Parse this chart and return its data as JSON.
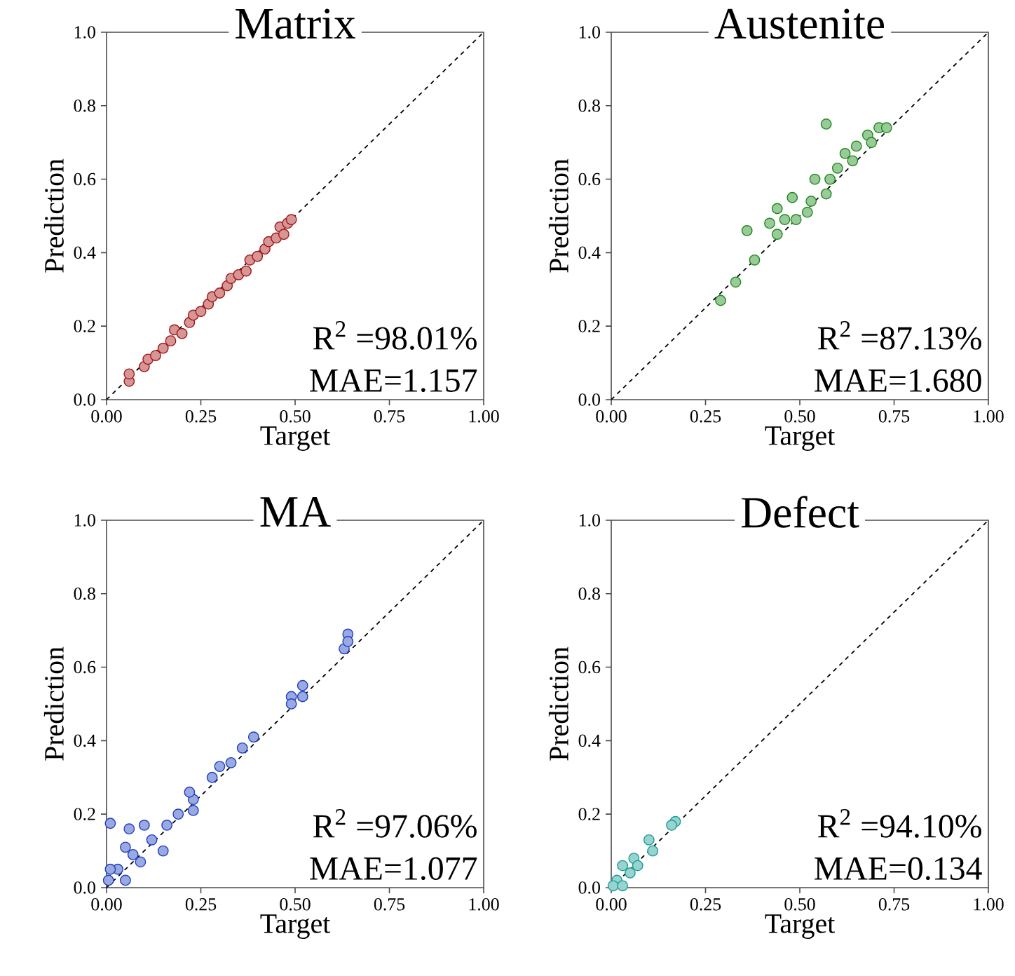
{
  "chart_data": [
    {
      "type": "scatter",
      "title": "Matrix",
      "xlabel": "Target",
      "ylabel": "Prediction",
      "xlim": [
        0,
        1
      ],
      "ylim": [
        0,
        1
      ],
      "xticks": [
        {
          "value": 0,
          "label": "0.00"
        },
        {
          "value": 0.25,
          "label": "0.25"
        },
        {
          "value": 0.5,
          "label": "0.50"
        },
        {
          "value": 0.75,
          "label": "0.75"
        },
        {
          "value": 1,
          "label": "1.00"
        }
      ],
      "yticks": [
        {
          "value": 0,
          "label": "0.0"
        },
        {
          "value": 0.2,
          "label": "0.2"
        },
        {
          "value": 0.4,
          "label": "0.4"
        },
        {
          "value": 0.6,
          "label": "0.6"
        },
        {
          "value": 0.8,
          "label": "0.8"
        },
        {
          "value": 1,
          "label": "1.0"
        }
      ],
      "annotations": [
        "R$^{2}$ =98.01%",
        "MAE=1.157"
      ],
      "series": [
        {
          "marker": "circle",
          "color": "#a31515",
          "x": [
            0.06,
            0.06,
            0.1,
            0.11,
            0.13,
            0.15,
            0.17,
            0.18,
            0.2,
            0.22,
            0.23,
            0.25,
            0.27,
            0.28,
            0.3,
            0.32,
            0.33,
            0.35,
            0.37,
            0.38,
            0.4,
            0.42,
            0.43,
            0.45,
            0.46,
            0.47,
            0.48,
            0.49
          ],
          "values": [
            0.05,
            0.07,
            0.09,
            0.11,
            0.12,
            0.14,
            0.16,
            0.19,
            0.18,
            0.21,
            0.23,
            0.24,
            0.26,
            0.28,
            0.29,
            0.31,
            0.33,
            0.34,
            0.35,
            0.38,
            0.39,
            0.41,
            0.43,
            0.44,
            0.47,
            0.45,
            0.48,
            0.49
          ]
        },
        {
          "type": "line",
          "line_style": "dashed",
          "color": "#000000",
          "x": [
            0,
            1
          ],
          "values": [
            0,
            1
          ]
        }
      ]
    },
    {
      "type": "scatter",
      "title": "Austenite",
      "xlabel": "Target",
      "ylabel": "Prediction",
      "xlim": [
        0,
        1
      ],
      "ylim": [
        0,
        1
      ],
      "xticks": [
        {
          "value": 0,
          "label": "0.00"
        },
        {
          "value": 0.25,
          "label": "0.25"
        },
        {
          "value": 0.5,
          "label": "0.50"
        },
        {
          "value": 0.75,
          "label": "0.75"
        },
        {
          "value": 1,
          "label": "1.00"
        }
      ],
      "yticks": [
        {
          "value": 0,
          "label": "0.0"
        },
        {
          "value": 0.2,
          "label": "0.2"
        },
        {
          "value": 0.4,
          "label": "0.4"
        },
        {
          "value": 0.6,
          "label": "0.6"
        },
        {
          "value": 0.8,
          "label": "0.8"
        },
        {
          "value": 1,
          "label": "1.0"
        }
      ],
      "annotations": [
        "R$^{2}$ =87.13%",
        "MAE=1.680"
      ],
      "series": [
        {
          "marker": "circle",
          "color": "#1e8a1e",
          "x": [
            0.29,
            0.33,
            0.36,
            0.38,
            0.42,
            0.44,
            0.44,
            0.46,
            0.48,
            0.49,
            0.52,
            0.53,
            0.54,
            0.57,
            0.57,
            0.58,
            0.6,
            0.62,
            0.64,
            0.65,
            0.68,
            0.69,
            0.71,
            0.73
          ],
          "values": [
            0.27,
            0.32,
            0.46,
            0.38,
            0.48,
            0.52,
            0.45,
            0.49,
            0.55,
            0.49,
            0.51,
            0.54,
            0.6,
            0.56,
            0.75,
            0.6,
            0.63,
            0.67,
            0.65,
            0.69,
            0.72,
            0.7,
            0.74,
            0.74
          ]
        },
        {
          "type": "line",
          "line_style": "dashed",
          "color": "#000000",
          "x": [
            0,
            1
          ],
          "values": [
            0,
            1
          ]
        }
      ]
    },
    {
      "type": "scatter",
      "title": "MA",
      "xlabel": "Target",
      "ylabel": "Prediction",
      "xlim": [
        0,
        1
      ],
      "ylim": [
        0,
        1
      ],
      "xticks": [
        {
          "value": 0,
          "label": "0.00"
        },
        {
          "value": 0.25,
          "label": "0.25"
        },
        {
          "value": 0.5,
          "label": "0.50"
        },
        {
          "value": 0.75,
          "label": "0.75"
        },
        {
          "value": 1,
          "label": "1.00"
        }
      ],
      "yticks": [
        {
          "value": 0,
          "label": "0.0"
        },
        {
          "value": 0.2,
          "label": "0.2"
        },
        {
          "value": 0.4,
          "label": "0.4"
        },
        {
          "value": 0.6,
          "label": "0.6"
        },
        {
          "value": 0.8,
          "label": "0.8"
        },
        {
          "value": 1,
          "label": "1.0"
        }
      ],
      "annotations": [
        "R$^{2}$ =97.06%",
        "MAE=1.077"
      ],
      "series": [
        {
          "marker": "circle",
          "color": "#2040c0",
          "x": [
            0.01,
            0.06,
            0.1,
            0.05,
            0.07,
            0.03,
            0.01,
            0.005,
            0.05,
            0.09,
            0.15,
            0.12,
            0.16,
            0.19,
            0.23,
            0.22,
            0.23,
            0.28,
            0.3,
            0.33,
            0.36,
            0.39,
            0.49,
            0.49,
            0.52,
            0.52,
            0.63,
            0.64,
            0.64
          ],
          "values": [
            0.175,
            0.16,
            0.17,
            0.11,
            0.09,
            0.05,
            0.05,
            0.02,
            0.02,
            0.07,
            0.1,
            0.13,
            0.17,
            0.2,
            0.24,
            0.26,
            0.21,
            0.3,
            0.33,
            0.34,
            0.38,
            0.41,
            0.52,
            0.5,
            0.55,
            0.52,
            0.65,
            0.69,
            0.67
          ]
        },
        {
          "type": "line",
          "line_style": "dashed",
          "color": "#000000",
          "x": [
            0,
            1
          ],
          "values": [
            0,
            1
          ]
        }
      ]
    },
    {
      "type": "scatter",
      "title": "Defect",
      "xlabel": "Target",
      "ylabel": "Prediction",
      "xlim": [
        0,
        1
      ],
      "ylim": [
        0,
        1
      ],
      "xticks": [
        {
          "value": 0,
          "label": "0.00"
        },
        {
          "value": 0.25,
          "label": "0.25"
        },
        {
          "value": 0.5,
          "label": "0.50"
        },
        {
          "value": 0.75,
          "label": "0.75"
        },
        {
          "value": 1,
          "label": "1.00"
        }
      ],
      "yticks": [
        {
          "value": 0,
          "label": "0.0"
        },
        {
          "value": 0.2,
          "label": "0.2"
        },
        {
          "value": 0.4,
          "label": "0.4"
        },
        {
          "value": 0.6,
          "label": "0.6"
        },
        {
          "value": 0.8,
          "label": "0.8"
        },
        {
          "value": 1,
          "label": "1.0"
        }
      ],
      "annotations": [
        "R$^{2}$ =94.10%",
        "MAE=0.134"
      ],
      "series": [
        {
          "marker": "circle",
          "color": "#1a9e96",
          "x": [
            0.17,
            0.16,
            0.1,
            0.11,
            0.06,
            0.03,
            0.05,
            0.015,
            0.005,
            0.03,
            0.07
          ],
          "values": [
            0.18,
            0.17,
            0.13,
            0.1,
            0.08,
            0.06,
            0.04,
            0.02,
            0.005,
            0.005,
            0.06
          ]
        },
        {
          "type": "line",
          "line_style": "dashed",
          "color": "#000000",
          "x": [
            0,
            1
          ],
          "values": [
            0,
            1
          ]
        }
      ]
    }
  ]
}
